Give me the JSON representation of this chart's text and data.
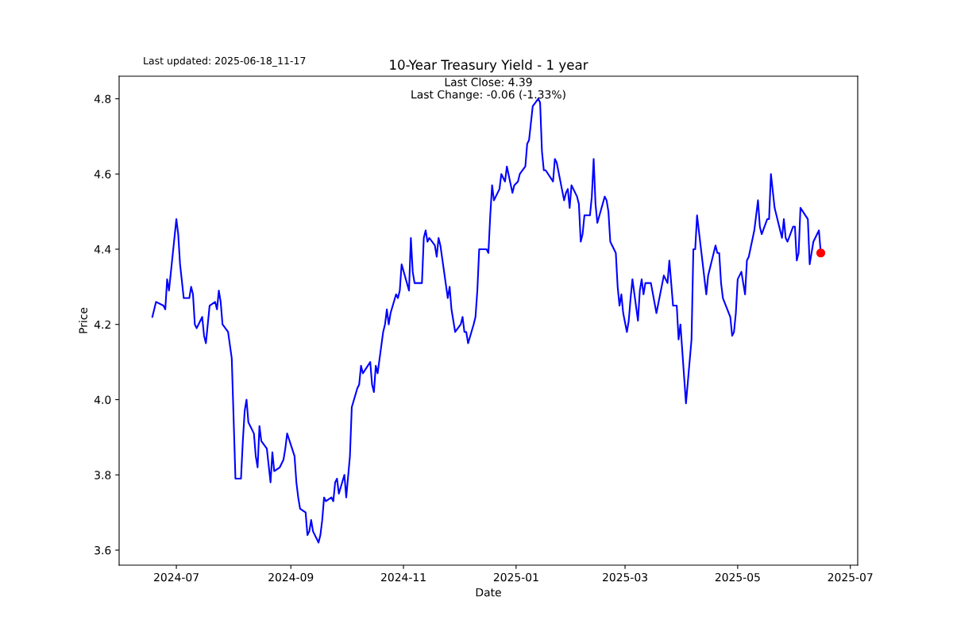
{
  "chart_data": {
    "type": "line",
    "title": "10-Year Treasury Yield - 1 year",
    "xlabel": "Date",
    "ylabel": "Price",
    "annotations": [
      "Last updated: 2025-06-18_11-17",
      "Last Close: 4.39",
      "Last Change: -0.06 (-1.33%)"
    ],
    "xlim": [
      "2024-05-31",
      "2025-07-05"
    ],
    "ylim": [
      3.56,
      4.86
    ],
    "xticks": [
      {
        "value": "2024-07-01",
        "label": "2024-07"
      },
      {
        "value": "2024-09-01",
        "label": "2024-09"
      },
      {
        "value": "2024-11-01",
        "label": "2024-11"
      },
      {
        "value": "2025-01-01",
        "label": "2025-01"
      },
      {
        "value": "2025-03-01",
        "label": "2025-03"
      },
      {
        "value": "2025-05-01",
        "label": "2025-05"
      },
      {
        "value": "2025-07-01",
        "label": "2025-07"
      }
    ],
    "yticks": [
      {
        "value": 3.6,
        "label": "3.6"
      },
      {
        "value": 3.8,
        "label": "3.8"
      },
      {
        "value": 4.0,
        "label": "4.0"
      },
      {
        "value": 4.2,
        "label": "4.2"
      },
      {
        "value": 4.4,
        "label": "4.4"
      },
      {
        "value": 4.6,
        "label": "4.6"
      },
      {
        "value": 4.8,
        "label": "4.8"
      }
    ],
    "grid": false,
    "legend": false,
    "series": [
      {
        "color": "#0000ff",
        "marker": "none",
        "line_style": "solid",
        "x": [
          "2024-06-18",
          "2024-06-20",
          "2024-06-24",
          "2024-06-25",
          "2024-06-26",
          "2024-06-27",
          "2024-07-01",
          "2024-07-02",
          "2024-07-03",
          "2024-07-05",
          "2024-07-08",
          "2024-07-09",
          "2024-07-10",
          "2024-07-11",
          "2024-07-12",
          "2024-07-15",
          "2024-07-16",
          "2024-07-17",
          "2024-07-19",
          "2024-07-22",
          "2024-07-23",
          "2024-07-24",
          "2024-07-25",
          "2024-07-26",
          "2024-07-29",
          "2024-07-31",
          "2024-08-02",
          "2024-08-05",
          "2024-08-06",
          "2024-08-07",
          "2024-08-08",
          "2024-08-09",
          "2024-08-12",
          "2024-08-13",
          "2024-08-14",
          "2024-08-15",
          "2024-08-16",
          "2024-08-19",
          "2024-08-21",
          "2024-08-22",
          "2024-08-23",
          "2024-08-26",
          "2024-08-27",
          "2024-08-28",
          "2024-08-29",
          "2024-08-30",
          "2024-09-03",
          "2024-09-04",
          "2024-09-05",
          "2024-09-06",
          "2024-09-09",
          "2024-09-10",
          "2024-09-11",
          "2024-09-12",
          "2024-09-13",
          "2024-09-16",
          "2024-09-17",
          "2024-09-18",
          "2024-09-19",
          "2024-09-20",
          "2024-09-23",
          "2024-09-24",
          "2024-09-25",
          "2024-09-26",
          "2024-09-27",
          "2024-09-30",
          "2024-10-01",
          "2024-10-03",
          "2024-10-04",
          "2024-10-07",
          "2024-10-08",
          "2024-10-09",
          "2024-10-10",
          "2024-10-14",
          "2024-10-15",
          "2024-10-16",
          "2024-10-17",
          "2024-10-18",
          "2024-10-21",
          "2024-10-22",
          "2024-10-23",
          "2024-10-24",
          "2024-10-25",
          "2024-10-28",
          "2024-10-29",
          "2024-10-30",
          "2024-10-31",
          "2024-11-04",
          "2024-11-05",
          "2024-11-06",
          "2024-11-07",
          "2024-11-11",
          "2024-11-12",
          "2024-11-13",
          "2024-11-14",
          "2024-11-15",
          "2024-11-18",
          "2024-11-19",
          "2024-11-20",
          "2024-11-21",
          "2024-11-25",
          "2024-11-26",
          "2024-11-27",
          "2024-11-29",
          "2024-12-02",
          "2024-12-03",
          "2024-12-04",
          "2024-12-05",
          "2024-12-06",
          "2024-12-09",
          "2024-12-10",
          "2024-12-11",
          "2024-12-12",
          "2024-12-16",
          "2024-12-17",
          "2024-12-18",
          "2024-12-19",
          "2024-12-20",
          "2024-12-23",
          "2024-12-24",
          "2024-12-26",
          "2024-12-27",
          "2024-12-30",
          "2024-12-31",
          "2025-01-02",
          "2025-01-03",
          "2025-01-06",
          "2025-01-07",
          "2025-01-08",
          "2025-01-10",
          "2025-01-13",
          "2025-01-14",
          "2025-01-15",
          "2025-01-16",
          "2025-01-17",
          "2025-01-21",
          "2025-01-22",
          "2025-01-23",
          "2025-01-27",
          "2025-01-28",
          "2025-01-29",
          "2025-01-30",
          "2025-01-31",
          "2025-02-03",
          "2025-02-04",
          "2025-02-05",
          "2025-02-06",
          "2025-02-07",
          "2025-02-10",
          "2025-02-11",
          "2025-02-12",
          "2025-02-13",
          "2025-02-14",
          "2025-02-18",
          "2025-02-19",
          "2025-02-20",
          "2025-02-21",
          "2025-02-24",
          "2025-02-25",
          "2025-02-26",
          "2025-02-27",
          "2025-02-28",
          "2025-03-02",
          "2025-03-03",
          "2025-03-04",
          "2025-03-05",
          "2025-03-08",
          "2025-03-09",
          "2025-03-10",
          "2025-03-11",
          "2025-03-12",
          "2025-03-15",
          "2025-03-18",
          "2025-03-22",
          "2025-03-24",
          "2025-03-25",
          "2025-03-27",
          "2025-03-29",
          "2025-03-30",
          "2025-03-31",
          "2025-04-02",
          "2025-04-03",
          "2025-04-06",
          "2025-04-07",
          "2025-04-08",
          "2025-04-09",
          "2025-04-14",
          "2025-04-15",
          "2025-04-19",
          "2025-04-20",
          "2025-04-21",
          "2025-04-22",
          "2025-04-23",
          "2025-04-27",
          "2025-04-28",
          "2025-04-29",
          "2025-04-30",
          "2025-05-01",
          "2025-05-03",
          "2025-05-05",
          "2025-05-06",
          "2025-05-07",
          "2025-05-10",
          "2025-05-12",
          "2025-05-13",
          "2025-05-14",
          "2025-05-17",
          "2025-05-18",
          "2025-05-19",
          "2025-05-21",
          "2025-05-25",
          "2025-05-26",
          "2025-05-27",
          "2025-05-28",
          "2025-05-31",
          "2025-06-01",
          "2025-06-02",
          "2025-06-03",
          "2025-06-04",
          "2025-06-08",
          "2025-06-09",
          "2025-06-11",
          "2025-06-14",
          "2025-06-15"
        ],
        "values": [
          4.22,
          4.26,
          4.25,
          4.24,
          4.32,
          4.29,
          4.48,
          4.44,
          4.36,
          4.27,
          4.27,
          4.3,
          4.28,
          4.2,
          4.19,
          4.22,
          4.17,
          4.15,
          4.25,
          4.26,
          4.24,
          4.29,
          4.26,
          4.2,
          4.18,
          4.11,
          3.79,
          3.79,
          3.89,
          3.97,
          4.0,
          3.94,
          3.91,
          3.85,
          3.82,
          3.93,
          3.89,
          3.87,
          3.78,
          3.86,
          3.81,
          3.82,
          3.83,
          3.84,
          3.87,
          3.91,
          3.85,
          3.78,
          3.74,
          3.71,
          3.7,
          3.64,
          3.65,
          3.68,
          3.65,
          3.62,
          3.64,
          3.68,
          3.74,
          3.73,
          3.74,
          3.73,
          3.78,
          3.79,
          3.75,
          3.8,
          3.74,
          3.85,
          3.98,
          4.03,
          4.04,
          4.09,
          4.07,
          4.1,
          4.04,
          4.02,
          4.09,
          4.07,
          4.18,
          4.2,
          4.24,
          4.2,
          4.23,
          4.28,
          4.27,
          4.29,
          4.36,
          4.29,
          4.43,
          4.34,
          4.31,
          4.31,
          4.43,
          4.45,
          4.42,
          4.43,
          4.41,
          4.38,
          4.43,
          4.41,
          4.27,
          4.3,
          4.24,
          4.18,
          4.2,
          4.22,
          4.18,
          4.18,
          4.15,
          4.2,
          4.22,
          4.29,
          4.4,
          4.4,
          4.39,
          4.49,
          4.57,
          4.53,
          4.56,
          4.6,
          4.58,
          4.62,
          4.55,
          4.57,
          4.58,
          4.6,
          4.62,
          4.68,
          4.69,
          4.78,
          4.8,
          4.79,
          4.66,
          4.61,
          4.61,
          4.58,
          4.64,
          4.63,
          4.53,
          4.55,
          4.56,
          4.51,
          4.57,
          4.54,
          4.52,
          4.42,
          4.44,
          4.49,
          4.49,
          4.54,
          4.64,
          4.52,
          4.47,
          4.54,
          4.53,
          4.5,
          4.42,
          4.39,
          4.3,
          4.25,
          4.28,
          4.23,
          4.18,
          4.21,
          4.27,
          4.32,
          4.21,
          4.29,
          4.32,
          4.28,
          4.31,
          4.31,
          4.23,
          4.33,
          4.31,
          4.37,
          4.25,
          4.25,
          4.16,
          4.2,
          4.06,
          3.99,
          4.16,
          4.4,
          4.4,
          4.49,
          4.28,
          4.33,
          4.41,
          4.39,
          4.39,
          4.31,
          4.27,
          4.22,
          4.17,
          4.18,
          4.23,
          4.32,
          4.34,
          4.28,
          4.37,
          4.38,
          4.45,
          4.53,
          4.46,
          4.44,
          4.48,
          4.48,
          4.6,
          4.51,
          4.43,
          4.48,
          4.43,
          4.42,
          4.46,
          4.46,
          4.37,
          4.39,
          4.51,
          4.48,
          4.36,
          4.42,
          4.45,
          4.39
        ]
      },
      {
        "type": "scatter",
        "color": "#ff0000",
        "marker": "circle",
        "x": [
          "2025-06-15"
        ],
        "values": [
          4.39
        ]
      }
    ]
  }
}
